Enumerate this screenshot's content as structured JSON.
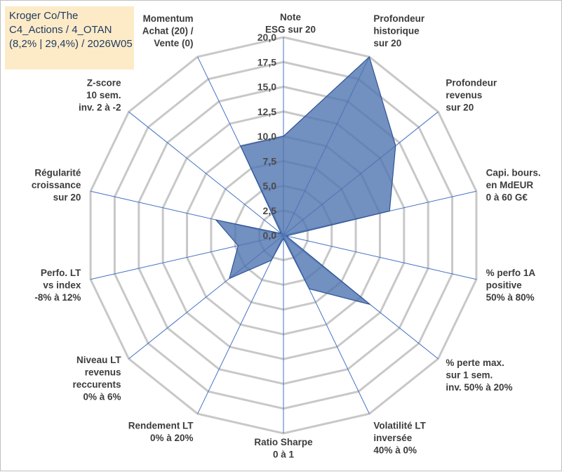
{
  "header": {
    "line1": "Kroger Co/The",
    "line2": "C4_Actions / 4_OTAN",
    "line3": "(8,2% | 29,4%) / 2026W05"
  },
  "colors": {
    "grid": "#c8c8c8",
    "spoke": "#4472c4",
    "fill": "#4f74b0",
    "stroke": "#2f5597"
  },
  "chart_data": {
    "type": "radar",
    "title": "Kroger Co/The",
    "range": [
      0,
      20
    ],
    "step": 2.5,
    "tick_labels": [
      "0,0",
      "2,5",
      "5,0",
      "7,5",
      "10,0",
      "12,5",
      "15,0",
      "17,5",
      "20,0"
    ],
    "axes": [
      {
        "label": [
          "Note",
          "ESG sur 20"
        ],
        "value": 10.0
      },
      {
        "label": [
          "Profondeur",
          "historique",
          "sur 20"
        ],
        "value": 20.0
      },
      {
        "label": [
          "Profondeur",
          "revenus",
          "sur 20"
        ],
        "value": 14.5
      },
      {
        "label": [
          "Capi. bours.",
          "en MdEUR",
          "0 à 60 G€"
        ],
        "value": 11.0
      },
      {
        "label": [
          "% perfo 1A",
          "positive",
          "50% à 80%"
        ],
        "value": 0.3
      },
      {
        "label": [
          "% perte max.",
          "sur 1 sem.",
          "inv. 50% à 20%"
        ],
        "value": 11.2
      },
      {
        "label": [
          "Volatilité LT",
          "inversée",
          "40% à 0%"
        ],
        "value": 6.0
      },
      {
        "label": [
          "Ratio Sharpe",
          "0 à 1"
        ],
        "value": 0.3
      },
      {
        "label": [
          "Rendement LT",
          "0% à 20%"
        ],
        "value": 2.8
      },
      {
        "label": [
          "Niveau LT",
          "revenus",
          "reccurents",
          "0% à 6%"
        ],
        "value": 7.0
      },
      {
        "label": [
          "Perfo. LT",
          "vs index",
          "-8% à 12%"
        ],
        "value": 4.7
      },
      {
        "label": [
          "Régularité",
          "croissance",
          "sur 20"
        ],
        "value": 7.0
      },
      {
        "label": [
          "Z-score",
          "10 sem.",
          "inv. 2 à -2"
        ],
        "value": 0.3
      },
      {
        "label": [
          "Momentum",
          "Achat (20) /",
          "Vente (0)"
        ],
        "value": 10.0
      }
    ]
  }
}
